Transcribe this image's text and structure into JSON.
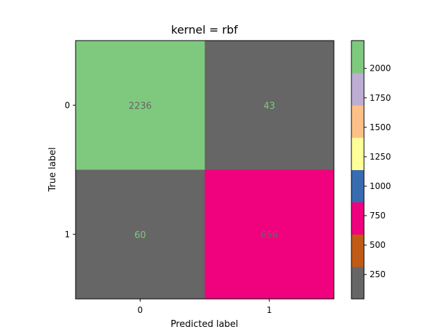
{
  "chart_data": {
    "type": "heatmap",
    "title": "kernel = rbf",
    "xlabel": "Predicted label",
    "ylabel": "True label",
    "x_categories": [
      "0",
      "1"
    ],
    "y_categories": [
      "0",
      "1"
    ],
    "matrix": [
      [
        2236,
        43
      ],
      [
        60,
        656
      ]
    ],
    "cell_text_colors": [
      [
        "#666666",
        "#7fc97f"
      ],
      [
        "#7fc97f",
        "#666666"
      ]
    ],
    "colormap": "Accent_r",
    "colorbar": {
      "vmin": 43,
      "vmax": 2236,
      "ticks": [
        250,
        500,
        750,
        1000,
        1250,
        1500,
        1750,
        2000
      ],
      "tick_labels": [
        "250",
        "500",
        "750",
        "1000",
        "1250",
        "1500",
        "1750",
        "2000"
      ],
      "colors": [
        "#666666",
        "#bf5b17",
        "#f0027f",
        "#386cb0",
        "#ffff99",
        "#fdc086",
        "#beaed4",
        "#7fc97f"
      ]
    },
    "grid": false
  }
}
